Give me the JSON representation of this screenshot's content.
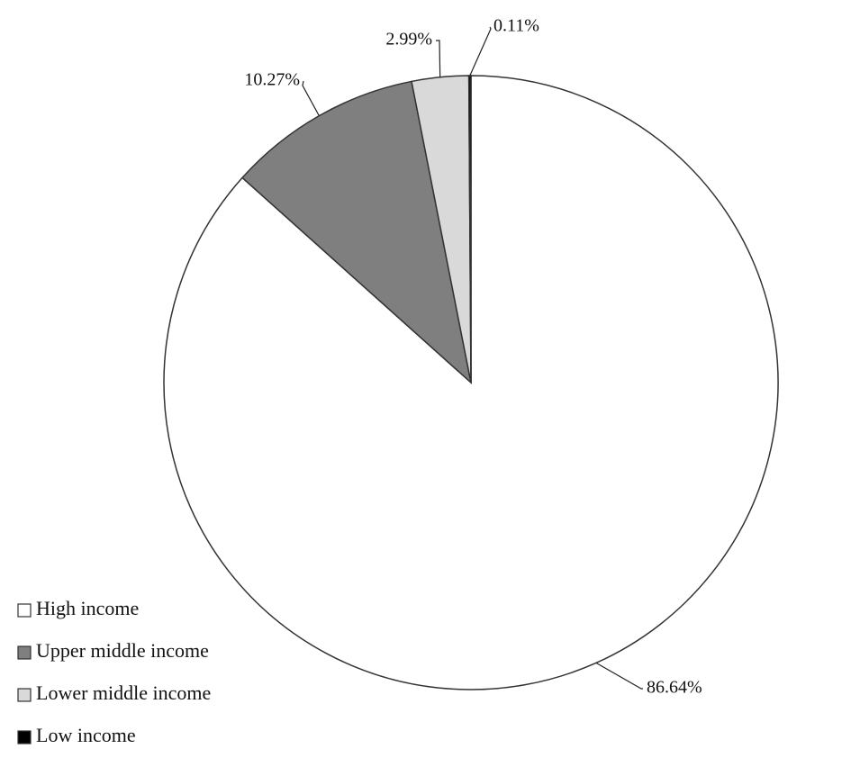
{
  "chart_data": {
    "type": "pie",
    "categories": [
      "High income",
      "Upper middle income",
      "Lower middle income",
      "Low income"
    ],
    "values": [
      86.64,
      10.27,
      2.99,
      0.11
    ],
    "value_labels": [
      "86.64%",
      "10.27%",
      "2.99%",
      "0.11%"
    ],
    "colors": [
      "#ffffff",
      "#7f7f7f",
      "#d9d9d9",
      "#000000"
    ]
  }
}
